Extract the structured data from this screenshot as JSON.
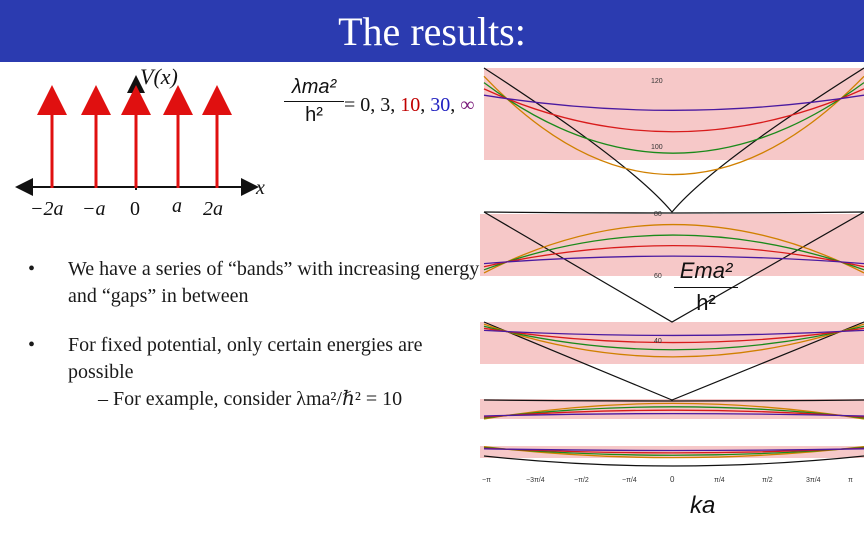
{
  "title": "The results:",
  "potential_plot": {
    "v_label": "V(x)",
    "x_label": "x",
    "ticks": [
      "−2a",
      "−a",
      "0",
      "a",
      "2a"
    ]
  },
  "coupling_formula": {
    "numerator": "λma²",
    "denominator": "h²",
    "eq": " = ",
    "v0": "0",
    "v1": "3",
    "v2": "10",
    "v3": "30",
    "v4": "∞",
    "sep": ", "
  },
  "bullets": [
    {
      "text": "We have a series of “bands” with increasing energy and “gaps” in between"
    },
    {
      "text": "For fixed potential, only certain energies are possible"
    }
  ],
  "sub_bullet": {
    "dash": "–",
    "text": "For example, consider λma²/ℏ² = 10"
  },
  "band_plot": {
    "energy_label_num": "Ema²",
    "energy_label_den": "h²",
    "x_label": "ka",
    "y_ticks": [
      "120",
      "100",
      "80",
      "60",
      "40"
    ],
    "x_ticks": [
      "−π",
      "−3π/4",
      "−π/2",
      "−π/4",
      "0",
      "π/4",
      "π/2",
      "3π/4",
      "π"
    ],
    "band_shading": "#f6c8c8",
    "series_colors": {
      "free": "#111111",
      "3": "#d08000",
      "10": "#1a8a1a",
      "30": "#d81b1b",
      "inf": "#4a1aa0"
    }
  },
  "colors": {
    "title_bar": "#2b3bb0",
    "arrows": "#e01010",
    "axis": "#111111"
  }
}
